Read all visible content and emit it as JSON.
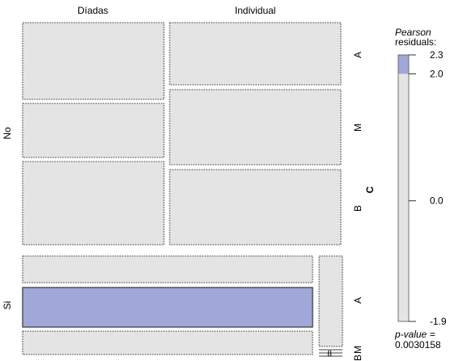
{
  "chart_data": {
    "type": "mosaic",
    "column_labels": [
      "Díadas",
      "Individual"
    ],
    "row_labels": [
      "No",
      "Si"
    ],
    "variable_label": "C",
    "level_labels": [
      "A",
      "M",
      "B"
    ],
    "cells": [
      {
        "row": "No",
        "col": "Díadas",
        "level": "A",
        "residual": 0.4
      },
      {
        "row": "No",
        "col": "Díadas",
        "level": "M",
        "residual": 0.3
      },
      {
        "row": "No",
        "col": "Díadas",
        "level": "B",
        "residual": 0.2
      },
      {
        "row": "No",
        "col": "Individual",
        "level": "A",
        "residual": 0.4
      },
      {
        "row": "No",
        "col": "Individual",
        "level": "M",
        "residual": 0.3
      },
      {
        "row": "No",
        "col": "Individual",
        "level": "B",
        "residual": 0.3
      },
      {
        "row": "Si",
        "col": "Díadas",
        "level": "A",
        "residual": -0.5
      },
      {
        "row": "Si",
        "col": "Díadas",
        "level": "M",
        "residual": 2.3
      },
      {
        "row": "Si",
        "col": "Díadas",
        "level": "B",
        "residual": -1.9
      },
      {
        "row": "Si",
        "col": "Individual",
        "level": "A",
        "residual": -1.2
      },
      {
        "row": "Si",
        "col": "Individual",
        "level": "M",
        "residual": 0.0
      },
      {
        "row": "Si",
        "col": "Individual",
        "level": "B",
        "residual": 0.0
      }
    ],
    "legend": {
      "title_line1": "Pearson",
      "title_line2": "residuals:",
      "ticks": [
        "2.3",
        "2.0",
        "0.0",
        "-1.9"
      ],
      "range": [
        -1.9,
        2.3
      ],
      "shade_threshold": 2.0,
      "shade_color": "#a0a8d8",
      "neutral_color": "#e4e4e4",
      "pvalue_line1": "p-value =",
      "pvalue_line2": "0.0030158"
    },
    "zero_cell_label": "8"
  }
}
